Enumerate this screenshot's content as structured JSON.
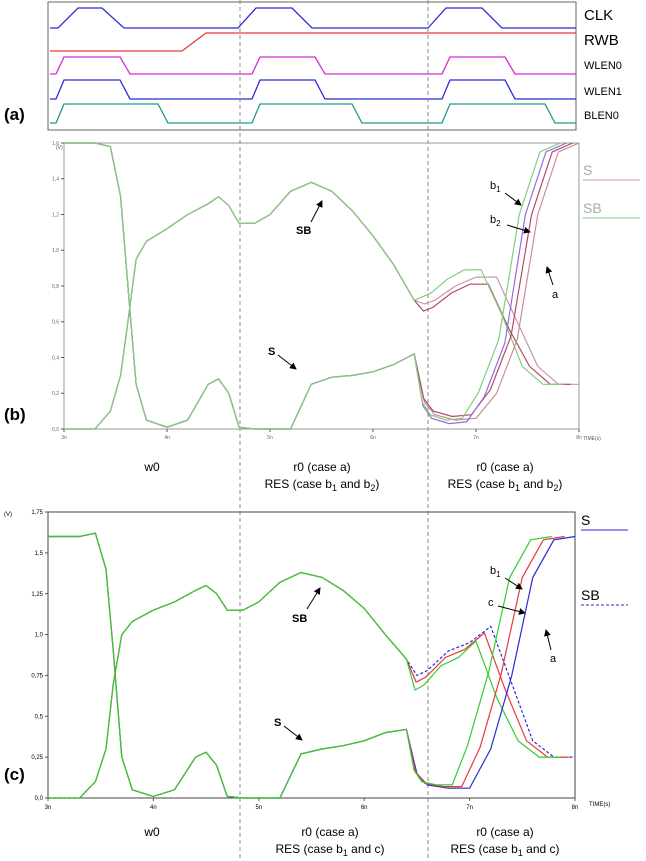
{
  "panels": {
    "a": {
      "label": "(a)"
    },
    "b": {
      "label": "(b)"
    },
    "c": {
      "label": "(c)"
    }
  },
  "timing": {
    "signals": [
      {
        "name": "CLK",
        "color": "#2a2ad8"
      },
      {
        "name": "RWB",
        "color": "#e43b3b"
      },
      {
        "name": "WLEN0",
        "color": "#d42ad4"
      },
      {
        "name": "WLEN1",
        "color": "#2a2ad8"
      },
      {
        "name": "BLEN0",
        "color": "#1f9a8a"
      }
    ]
  },
  "phases_b": [
    {
      "lines": [
        "w0"
      ]
    },
    {
      "lines": [
        "r0 (case a)",
        "RES (case b₁ and b₂)"
      ]
    },
    {
      "lines": [
        "r0 (case a)",
        "RES (case b₁ and b₂)"
      ]
    }
  ],
  "phases_c": [
    {
      "lines": [
        "w0"
      ]
    },
    {
      "lines": [
        "r0 (case a)",
        "RES (case b₁ and c)"
      ]
    },
    {
      "lines": [
        "r0 (case a)",
        "RES (case b₁ and c)"
      ]
    }
  ],
  "chart_data": [
    {
      "type": "line",
      "panel": "b",
      "x_unit": "TIME(s)",
      "y_unit": "(V)",
      "xlim": [
        3,
        8
      ],
      "ylim": [
        0,
        1.6
      ],
      "x_ticks": [
        "3n",
        "4n",
        "5n",
        "6n",
        "7n",
        "8n"
      ],
      "y_ticks": [
        "0,0",
        "0,2",
        "0,4",
        "0,6",
        "0,8",
        "1,0",
        "1,2",
        "1,4",
        "1,6"
      ],
      "legend": [
        "S",
        "SB"
      ],
      "annotations": [
        "SB",
        "S",
        "b₁",
        "b₂",
        "a"
      ],
      "series": [
        {
          "name": "SB",
          "x": [
            3.0,
            3.3,
            3.45,
            3.55,
            3.62,
            3.7,
            3.8,
            4.0,
            4.2,
            4.4,
            4.5,
            4.6,
            4.7,
            4.85,
            5.0,
            5.2,
            5.4,
            5.6,
            5.8,
            6.0,
            6.2,
            6.4,
            6.5,
            6.6,
            6.8,
            7.0,
            7.2,
            7.4,
            7.6,
            7.8,
            8.0
          ],
          "y": [
            0,
            0,
            0.1,
            0.3,
            0.6,
            0.95,
            1.05,
            1.12,
            1.2,
            1.26,
            1.3,
            1.25,
            1.15,
            1.15,
            1.2,
            1.33,
            1.38,
            1.33,
            1.22,
            1.08,
            0.92,
            0.72,
            0.7,
            0.72,
            0.8,
            0.85,
            0.85,
            0.6,
            0.35,
            0.25,
            0.25
          ]
        },
        {
          "name": "S",
          "x": [
            3.0,
            3.3,
            3.45,
            3.55,
            3.62,
            3.7,
            3.8,
            4.0,
            4.2,
            4.4,
            4.5,
            4.6,
            4.7,
            4.85,
            5.0,
            5.2,
            5.4,
            5.6,
            5.8,
            6.0,
            6.2,
            6.4,
            6.5,
            6.6,
            6.8,
            7.0,
            7.2,
            7.4,
            7.6,
            7.8,
            8.0
          ],
          "y": [
            1.6,
            1.6,
            1.58,
            1.3,
            0.8,
            0.25,
            0.05,
            0.01,
            0.05,
            0.25,
            0.28,
            0.2,
            0.01,
            0.0,
            0.0,
            0.0,
            0.25,
            0.29,
            0.3,
            0.32,
            0.36,
            0.42,
            0.15,
            0.08,
            0.05,
            0.06,
            0.2,
            0.5,
            1.2,
            1.55,
            1.6
          ]
        }
      ]
    },
    {
      "type": "line",
      "panel": "c",
      "x_unit": "TIME(s)",
      "y_unit": "(V)",
      "xlim": [
        3,
        8
      ],
      "ylim": [
        0,
        1.75
      ],
      "x_ticks": [
        "3n",
        "4n",
        "5n",
        "6n",
        "7n",
        "8n"
      ],
      "y_ticks": [
        "0,0",
        "0,25",
        "0,5",
        "0,75",
        "1,0",
        "1,25",
        "1,5",
        "1,75"
      ],
      "legend": [
        "S",
        "SB"
      ],
      "annotations": [
        "SB",
        "S",
        "b₁",
        "c",
        "a"
      ],
      "series": [
        {
          "name": "SB",
          "x": [
            3.0,
            3.3,
            3.45,
            3.55,
            3.62,
            3.7,
            3.8,
            4.0,
            4.2,
            4.4,
            4.5,
            4.6,
            4.7,
            4.85,
            5.0,
            5.2,
            5.4,
            5.6,
            5.8,
            6.0,
            6.2,
            6.4,
            6.5,
            6.6,
            6.8,
            7.0,
            7.2,
            7.4,
            7.6,
            7.8,
            8.0
          ],
          "y": [
            0,
            0,
            0.1,
            0.3,
            0.7,
            1.0,
            1.08,
            1.15,
            1.2,
            1.27,
            1.3,
            1.25,
            1.15,
            1.15,
            1.2,
            1.32,
            1.38,
            1.35,
            1.27,
            1.16,
            1.0,
            0.85,
            0.75,
            0.78,
            0.9,
            0.95,
            1.05,
            0.7,
            0.35,
            0.25,
            0.25
          ]
        },
        {
          "name": "S",
          "x": [
            3.0,
            3.3,
            3.45,
            3.55,
            3.62,
            3.7,
            3.8,
            4.0,
            4.2,
            4.4,
            4.5,
            4.6,
            4.7,
            4.85,
            5.0,
            5.2,
            5.4,
            5.6,
            5.8,
            6.0,
            6.2,
            6.4,
            6.5,
            6.6,
            6.8,
            7.0,
            7.2,
            7.4,
            7.6,
            7.8,
            8.0
          ],
          "y": [
            1.6,
            1.6,
            1.62,
            1.4,
            0.9,
            0.25,
            0.05,
            0.01,
            0.05,
            0.25,
            0.28,
            0.2,
            0.01,
            0.0,
            0.0,
            0.0,
            0.27,
            0.3,
            0.32,
            0.35,
            0.4,
            0.42,
            0.15,
            0.08,
            0.06,
            0.06,
            0.3,
            0.75,
            1.35,
            1.58,
            1.6
          ]
        }
      ]
    }
  ],
  "colors": {
    "b_s_a": "#d28a9a",
    "b_s_b1": "#b34a6a",
    "b_s_b2": "#9a6ad8",
    "b_sb": "#c79aa8",
    "b_green": "#7fd07f",
    "c_a": "#2a2ad8",
    "c_b1": "#e43b3b",
    "c_c": "#33cc33"
  }
}
